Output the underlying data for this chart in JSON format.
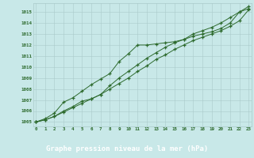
{
  "x": [
    0,
    1,
    2,
    3,
    4,
    5,
    6,
    7,
    8,
    9,
    10,
    11,
    12,
    13,
    14,
    15,
    16,
    17,
    18,
    19,
    20,
    21,
    22,
    23
  ],
  "line1": [
    1005.0,
    1005.3,
    1005.8,
    1006.8,
    1007.2,
    1007.8,
    1008.4,
    1008.9,
    1009.4,
    1010.5,
    1011.2,
    1012.0,
    1012.0,
    1012.1,
    1012.2,
    1012.3,
    1012.5,
    1012.8,
    1013.0,
    1013.2,
    1013.5,
    1014.0,
    1015.0,
    1015.3
  ],
  "line2": [
    1005.0,
    1005.2,
    1005.5,
    1005.9,
    1006.3,
    1006.7,
    1007.1,
    1007.5,
    1008.0,
    1008.5,
    1009.0,
    1009.6,
    1010.1,
    1010.7,
    1011.1,
    1011.6,
    1012.0,
    1012.4,
    1012.7,
    1013.0,
    1013.3,
    1013.7,
    1014.2,
    1015.2
  ],
  "line3": [
    1005.0,
    1005.2,
    1005.5,
    1006.0,
    1006.4,
    1006.9,
    1007.1,
    1007.5,
    1008.3,
    1009.0,
    1009.6,
    1010.2,
    1010.8,
    1011.3,
    1011.8,
    1012.2,
    1012.5,
    1013.0,
    1013.3,
    1013.6,
    1014.0,
    1014.5,
    1015.0,
    1015.5
  ],
  "line_color": "#2d6a2d",
  "bg_color": "#c8e8e8",
  "grid_color": "#aacaca",
  "grid_minor_color": "#bcdcdc",
  "xlabel": "Graphe pression niveau de la mer (hPa)",
  "xlabel_fontsize": 6.5,
  "yticks": [
    1005,
    1006,
    1007,
    1008,
    1009,
    1010,
    1011,
    1012,
    1013,
    1014,
    1015
  ],
  "xticks": [
    0,
    1,
    2,
    3,
    4,
    5,
    6,
    7,
    8,
    9,
    10,
    11,
    12,
    13,
    14,
    15,
    16,
    17,
    18,
    19,
    20,
    21,
    22,
    23
  ],
  "ylim": [
    1004.6,
    1015.8
  ],
  "xlim": [
    -0.3,
    23.3
  ],
  "marker": "+",
  "bottom_bar_color": "#2d6a2d",
  "bottom_bar_height": 0.13
}
